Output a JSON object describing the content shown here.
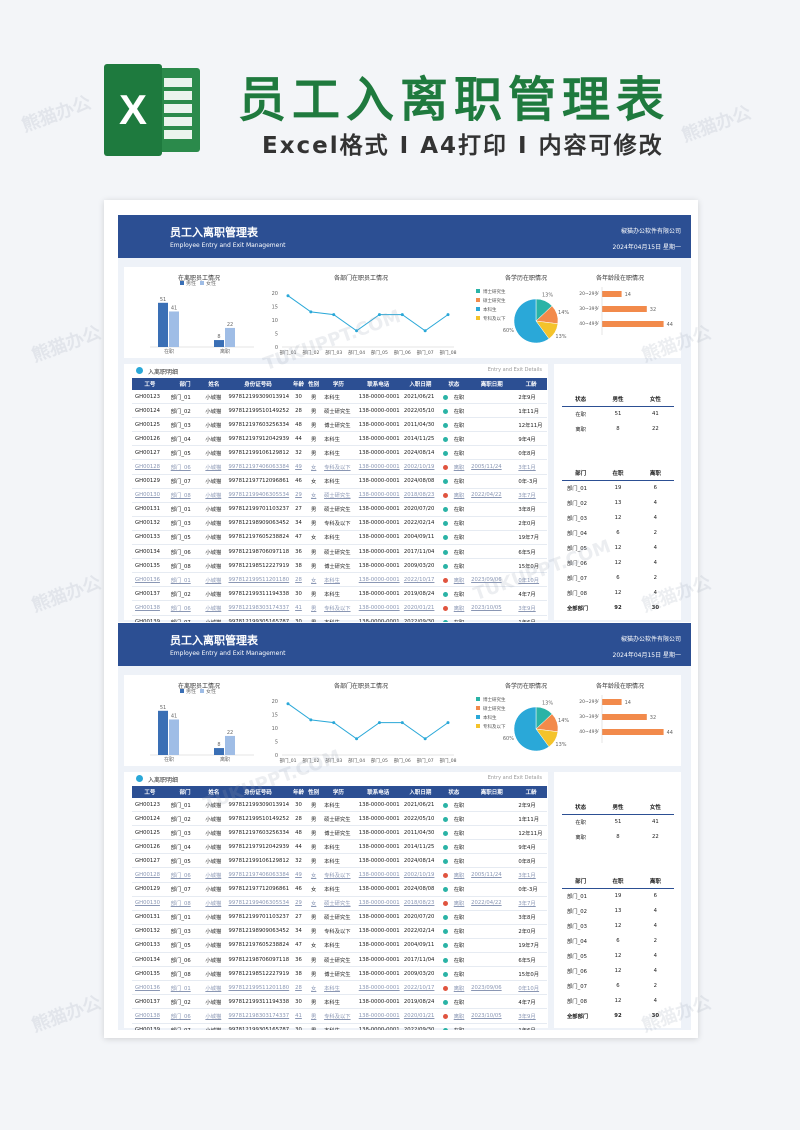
{
  "hero": {
    "title": "员工入离职管理表",
    "subtitle": "Excel格式 I A4打印 I 内容可修改",
    "logo_letter": "X"
  },
  "header": {
    "title": "员工入离职管理表",
    "subtitle": "Employee Entry and Exit Management",
    "company": "椒猫办公软件有限公司",
    "date_line": "2024年04月15日 星期一"
  },
  "charts": {
    "status_title": "在离职员工情况",
    "dept_title": "各部门在职员工情况",
    "edu_title": "各学历在职情况",
    "age_title": "各年龄段在职情况",
    "legend_male": "男性",
    "legend_female": "女性"
  },
  "detail": {
    "title": "入离职明细",
    "title_en": "Entry and Exit Details",
    "columns": [
      "工号",
      "部门",
      "姓名",
      "身份证号码",
      "年龄",
      "性别",
      "学历",
      "联系电话",
      "入职日期",
      "状态",
      "离职日期",
      "工龄"
    ],
    "rows": [
      {
        "id": "GH00123",
        "dept": "部门_01",
        "name": "小城猫",
        "idno": "997812199309013914",
        "age": "30",
        "sex": "男",
        "edu": "本科生",
        "tel": "138-0000-0001",
        "join": "2021/06/21",
        "status": "在职",
        "leave": "",
        "tenure": "2年9月",
        "left": false
      },
      {
        "id": "GH00124",
        "dept": "部门_02",
        "name": "小城猫",
        "idno": "997812199510149252",
        "age": "28",
        "sex": "男",
        "edu": "硕士研究生",
        "tel": "138-0000-0001",
        "join": "2022/05/10",
        "status": "在职",
        "leave": "",
        "tenure": "1年11月",
        "left": false
      },
      {
        "id": "GH00125",
        "dept": "部门_03",
        "name": "小城猫",
        "idno": "997812197603256334",
        "age": "48",
        "sex": "男",
        "edu": "博士研究生",
        "tel": "138-0000-0001",
        "join": "2011/04/30",
        "status": "在职",
        "leave": "",
        "tenure": "12年11月",
        "left": false
      },
      {
        "id": "GH00126",
        "dept": "部门_04",
        "name": "小城猫",
        "idno": "997812197912042939",
        "age": "44",
        "sex": "男",
        "edu": "本科生",
        "tel": "138-0000-0001",
        "join": "2014/11/25",
        "status": "在职",
        "leave": "",
        "tenure": "9年4月",
        "left": false
      },
      {
        "id": "GH00127",
        "dept": "部门_05",
        "name": "小城猫",
        "idno": "997812199106129812",
        "age": "32",
        "sex": "男",
        "edu": "本科生",
        "tel": "138-0000-0001",
        "join": "2024/08/14",
        "status": "在职",
        "leave": "",
        "tenure": "0年8月",
        "left": false
      },
      {
        "id": "GH00128",
        "dept": "部门_06",
        "name": "小城猫",
        "idno": "997812197406063384",
        "age": "49",
        "sex": "女",
        "edu": "专科及以下",
        "tel": "138-0000-0001",
        "join": "2002/10/19",
        "status": "离职",
        "leave": "2005/11/24",
        "tenure": "3年1月",
        "left": true
      },
      {
        "id": "GH00129",
        "dept": "部门_07",
        "name": "小城猫",
        "idno": "997812197712096861",
        "age": "46",
        "sex": "女",
        "edu": "本科生",
        "tel": "138-0000-0001",
        "join": "2024/08/08",
        "status": "在职",
        "leave": "",
        "tenure": "0年-3月",
        "left": false
      },
      {
        "id": "GH00130",
        "dept": "部门_08",
        "name": "小城猫",
        "idno": "997812199406305534",
        "age": "29",
        "sex": "女",
        "edu": "硕士研究生",
        "tel": "138-0000-0001",
        "join": "2018/08/23",
        "status": "离职",
        "leave": "2022/04/22",
        "tenure": "3年7月",
        "left": true
      },
      {
        "id": "GH00131",
        "dept": "部门_01",
        "name": "小城猫",
        "idno": "997812199701103237",
        "age": "27",
        "sex": "男",
        "edu": "硕士研究生",
        "tel": "138-0000-0001",
        "join": "2020/07/20",
        "status": "在职",
        "leave": "",
        "tenure": "3年8月",
        "left": false
      },
      {
        "id": "GH00132",
        "dept": "部门_03",
        "name": "小城猫",
        "idno": "997812198909063452",
        "age": "34",
        "sex": "男",
        "edu": "专科及以下",
        "tel": "138-0000-0001",
        "join": "2022/02/14",
        "status": "在职",
        "leave": "",
        "tenure": "2年0月",
        "left": false
      },
      {
        "id": "GH00133",
        "dept": "部门_05",
        "name": "小城猫",
        "idno": "997812197605238824",
        "age": "47",
        "sex": "女",
        "edu": "本科生",
        "tel": "138-0000-0001",
        "join": "2004/09/11",
        "status": "在职",
        "leave": "",
        "tenure": "19年7月",
        "left": false
      },
      {
        "id": "GH00134",
        "dept": "部门_06",
        "name": "小城猫",
        "idno": "997812198706097118",
        "age": "36",
        "sex": "男",
        "edu": "硕士研究生",
        "tel": "138-0000-0001",
        "join": "2017/11/04",
        "status": "在职",
        "leave": "",
        "tenure": "6年5月",
        "left": false
      },
      {
        "id": "GH00135",
        "dept": "部门_08",
        "name": "小城猫",
        "idno": "997812198512227919",
        "age": "38",
        "sex": "男",
        "edu": "博士研究生",
        "tel": "138-0000-0001",
        "join": "2009/03/20",
        "status": "在职",
        "leave": "",
        "tenure": "15年0月",
        "left": false
      },
      {
        "id": "GH00136",
        "dept": "部门_01",
        "name": "小城猫",
        "idno": "997812199511201180",
        "age": "28",
        "sex": "女",
        "edu": "本科生",
        "tel": "138-0000-0001",
        "join": "2022/10/17",
        "status": "离职",
        "leave": "2023/09/06",
        "tenure": "0年10月",
        "left": true
      },
      {
        "id": "GH00137",
        "dept": "部门_02",
        "name": "小城猫",
        "idno": "997812199311194338",
        "age": "30",
        "sex": "男",
        "edu": "本科生",
        "tel": "138-0000-0001",
        "join": "2019/08/24",
        "status": "在职",
        "leave": "",
        "tenure": "4年7月",
        "left": false
      },
      {
        "id": "GH00138",
        "dept": "部门_06",
        "name": "小城猫",
        "idno": "997812198303174337",
        "age": "41",
        "sex": "男",
        "edu": "专科及以下",
        "tel": "138-0000-0001",
        "join": "2020/01/21",
        "status": "离职",
        "leave": "2023/10/05",
        "tenure": "3年9月",
        "left": true
      },
      {
        "id": "GH00139",
        "dept": "部门_07",
        "name": "小城猫",
        "idno": "997812199305165787",
        "age": "30",
        "sex": "男",
        "edu": "本科生",
        "tel": "138-0000-0001",
        "join": "2022/09/30",
        "status": "在职",
        "leave": "",
        "tenure": "1年6月",
        "left": false
      }
    ]
  },
  "summary": {
    "status_cols": [
      "状态",
      "男性",
      "女性"
    ],
    "status_rows": [
      [
        "在职",
        "51",
        "41"
      ],
      [
        "离职",
        "8",
        "22"
      ]
    ],
    "dept_cols": [
      "部门",
      "在职",
      "离职"
    ],
    "dept_rows": [
      [
        "部门_01",
        "19",
        "6"
      ],
      [
        "部门_02",
        "13",
        "4"
      ],
      [
        "部门_03",
        "12",
        "4"
      ],
      [
        "部门_04",
        "6",
        "2"
      ],
      [
        "部门_05",
        "12",
        "4"
      ],
      [
        "部门_06",
        "12",
        "4"
      ],
      [
        "部门_07",
        "6",
        "2"
      ],
      [
        "部门_08",
        "12",
        "4"
      ],
      [
        "全部部门",
        "92",
        "30"
      ]
    ]
  },
  "watermark": "TUKUPPT.COM",
  "watermark_cn": "熊猫办公",
  "chart_data": [
    {
      "type": "bar",
      "title": "在离职员工情况",
      "categories": [
        "在职",
        "离职"
      ],
      "series": [
        {
          "name": "男性",
          "values": [
            51,
            8
          ]
        },
        {
          "name": "女性",
          "values": [
            41,
            22
          ]
        }
      ],
      "ylim": [
        0,
        60
      ]
    },
    {
      "type": "line",
      "title": "各部门在职员工情况",
      "categories": [
        "部门_01",
        "部门_02",
        "部门_03",
        "部门_04",
        "部门_05",
        "部门_06",
        "部门_07",
        "部门_08"
      ],
      "values": [
        19,
        13,
        12,
        6,
        12,
        12,
        6,
        12
      ],
      "ylim": [
        0,
        20
      ],
      "yticks": [
        0,
        5,
        10,
        15,
        20
      ]
    },
    {
      "type": "pie",
      "title": "各学历在职情况",
      "categories": [
        "博士研究生",
        "硕士研究生",
        "本科生",
        "专科及以下"
      ],
      "values": [
        13,
        14,
        60,
        13
      ],
      "colors": [
        "#2ab3a6",
        "#f28a4b",
        "#2aa8d8",
        "#f4c32b"
      ]
    },
    {
      "type": "bar",
      "title": "各年龄段在职情况",
      "categories": [
        "20~29岁",
        "30~39岁",
        "40~49岁"
      ],
      "values": [
        14,
        32,
        44
      ],
      "color": "#f28a4b",
      "xlim": [
        0,
        50
      ]
    }
  ],
  "colors": {
    "brand_green": "#1f7a3e",
    "header_blue": "#2c4f93",
    "accent_teal": "#2aa8d8",
    "accent_orange": "#f28a4b"
  }
}
